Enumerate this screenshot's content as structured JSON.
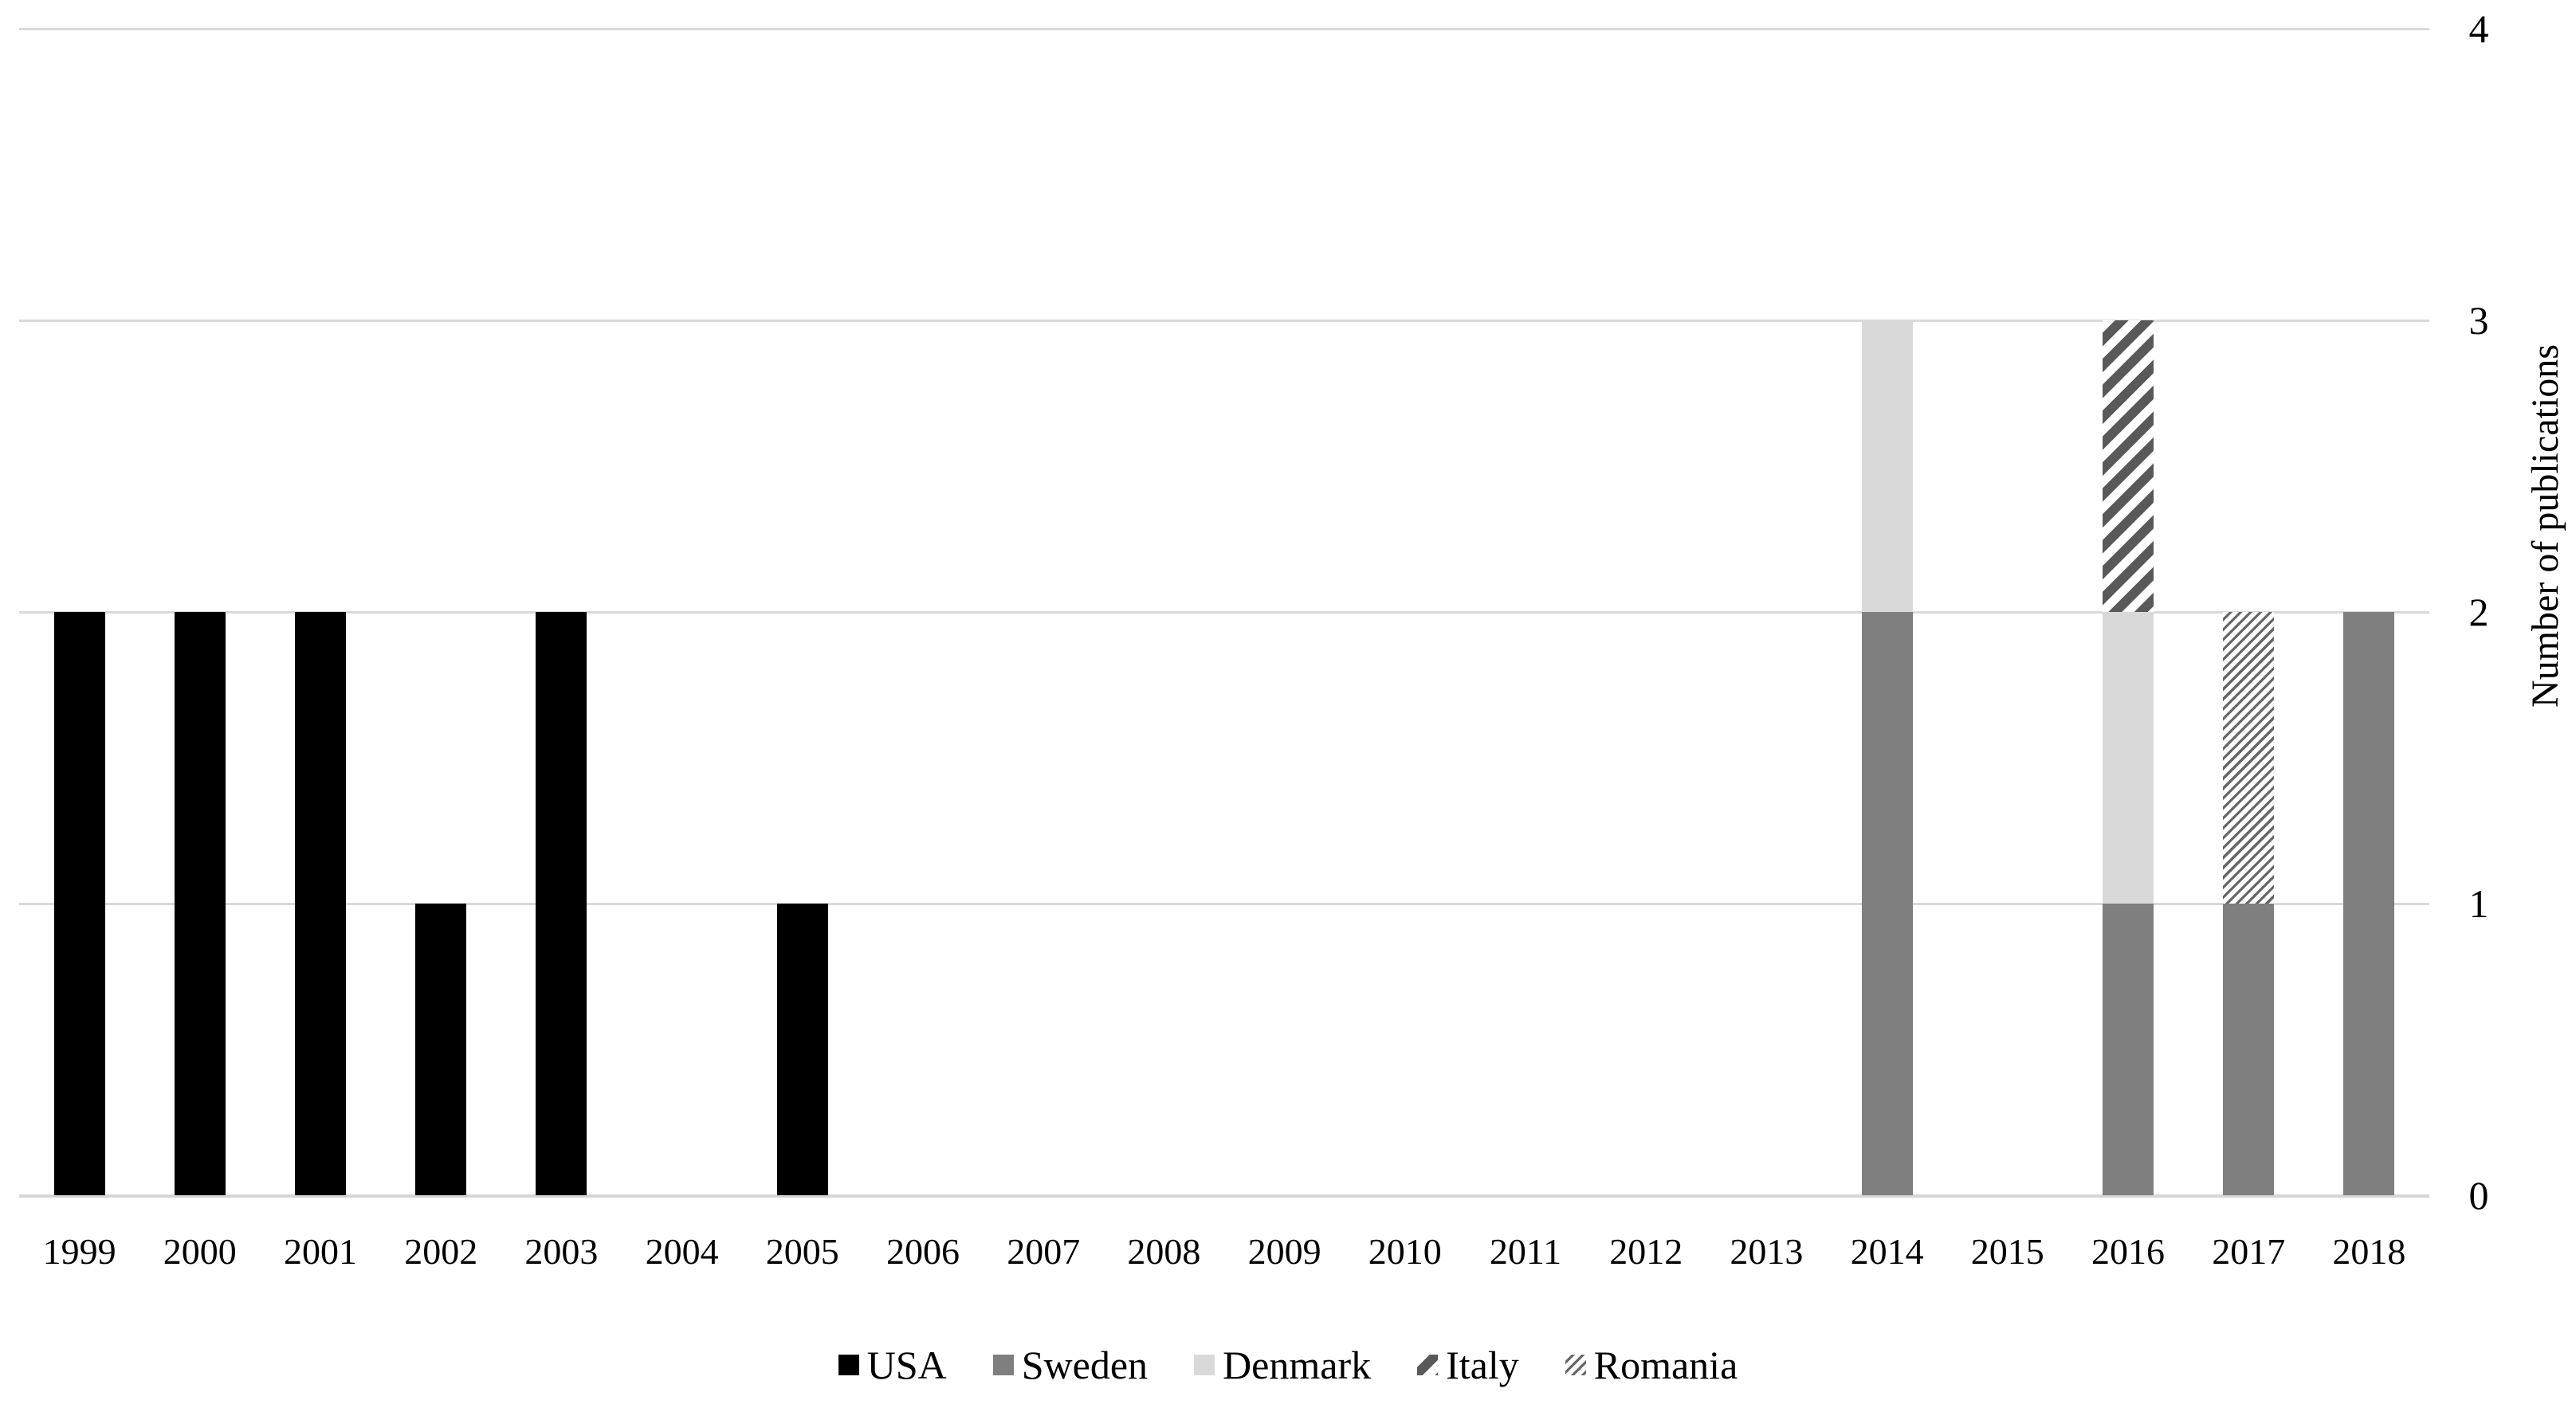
{
  "chart_data": {
    "type": "bar",
    "stacked": true,
    "title": "",
    "xlabel": "",
    "ylabel": "Number of publications",
    "ylim": [
      0,
      4
    ],
    "yticks": [
      0,
      1,
      2,
      3,
      4
    ],
    "grid": "horizontal",
    "legend_position": "bottom",
    "categories": [
      "1999",
      "2000",
      "2001",
      "2002",
      "2003",
      "2004",
      "2005",
      "2006",
      "2007",
      "2008",
      "2009",
      "2010",
      "2011",
      "2012",
      "2013",
      "2014",
      "2015",
      "2016",
      "2017",
      "2018"
    ],
    "series": [
      {
        "name": "USA",
        "color": "#000000",
        "pattern": "solid",
        "values": [
          2,
          2,
          2,
          1,
          2,
          0,
          1,
          0,
          0,
          0,
          0,
          0,
          0,
          0,
          0,
          0,
          0,
          0,
          0,
          0
        ]
      },
      {
        "name": "Sweden",
        "color": "#7f7f7f",
        "pattern": "solid",
        "values": [
          0,
          0,
          0,
          0,
          0,
          0,
          0,
          0,
          0,
          0,
          0,
          0,
          0,
          0,
          0,
          2,
          0,
          1,
          1,
          2
        ]
      },
      {
        "name": "Denmark",
        "color": "#d9d9d9",
        "pattern": "solid",
        "values": [
          0,
          0,
          0,
          0,
          0,
          0,
          0,
          0,
          0,
          0,
          0,
          0,
          0,
          0,
          0,
          1,
          0,
          1,
          0,
          0
        ]
      },
      {
        "name": "Italy",
        "color": "#595959",
        "pattern": "diagonal-wide",
        "values": [
          0,
          0,
          0,
          0,
          0,
          0,
          0,
          0,
          0,
          0,
          0,
          0,
          0,
          0,
          0,
          0,
          0,
          1,
          0,
          0
        ]
      },
      {
        "name": "Romania",
        "color": "#666666",
        "pattern": "diagonal-thin",
        "values": [
          0,
          0,
          0,
          0,
          0,
          0,
          0,
          0,
          0,
          0,
          0,
          0,
          0,
          0,
          0,
          0,
          0,
          0,
          1,
          0
        ]
      }
    ]
  },
  "colors": {
    "background": "#ffffff",
    "gridline": "#d9d9d9",
    "text": "#000000"
  }
}
